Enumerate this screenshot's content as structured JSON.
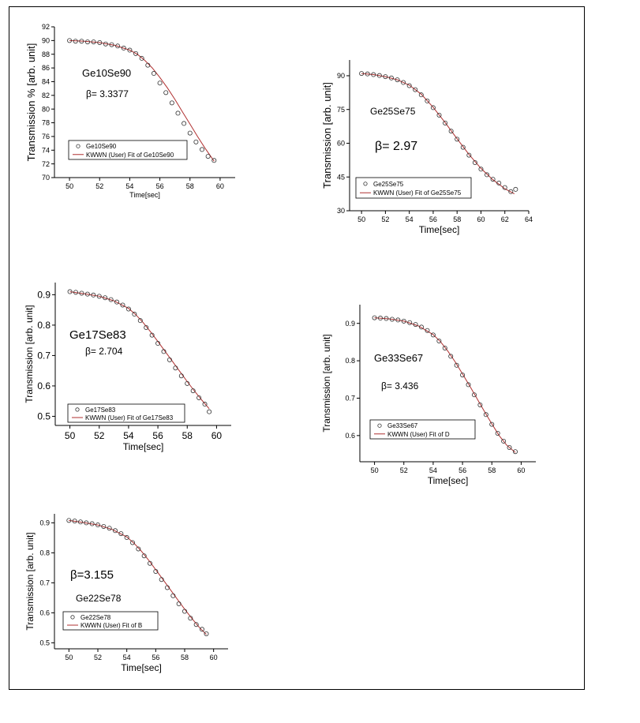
{
  "chart_data": [
    {
      "type": "scatter",
      "xlabel": "Time[sec]",
      "ylabel": "Transmission % [arb. unit]",
      "xlim": [
        49,
        61
      ],
      "ylim": [
        70,
        92
      ],
      "xticks": [
        50,
        52,
        54,
        56,
        58,
        60
      ],
      "yticks": [
        70,
        72,
        74,
        76,
        78,
        80,
        82,
        84,
        86,
        88,
        90,
        92
      ],
      "annotations": [
        "Ge10Se90",
        "β= 3.3377"
      ],
      "legend": [
        "Ge10Se90",
        "KWWN (User) Fit of Ge10Se90"
      ],
      "legend_position": "bottom-left",
      "colors": {
        "marker": "#333333",
        "fit": "#b03030"
      },
      "series": [
        {
          "name": "Ge10Se90",
          "kind": "points",
          "x": [
            50.0,
            50.4,
            50.8,
            51.2,
            51.6,
            52.0,
            52.4,
            52.8,
            53.2,
            53.6,
            54.0,
            54.4,
            54.8,
            55.2,
            55.6,
            56.0,
            56.4,
            56.8,
            57.2,
            57.6,
            58.0,
            58.4,
            58.8,
            59.2,
            59.6
          ],
          "y": [
            90.0,
            89.9,
            89.9,
            89.8,
            89.8,
            89.7,
            89.5,
            89.4,
            89.2,
            88.9,
            88.6,
            88.1,
            87.4,
            86.4,
            85.2,
            83.8,
            82.4,
            80.9,
            79.4,
            77.9,
            76.5,
            75.2,
            74.1,
            73.1,
            72.5
          ]
        },
        {
          "name": "KWWN (User) Fit of Ge10Se90",
          "kind": "line",
          "x": [
            50.0,
            51.0,
            52.0,
            53.0,
            54.0,
            54.5,
            55.0,
            55.5,
            56.0,
            56.5,
            57.0,
            57.5,
            58.0,
            58.5,
            59.0,
            59.6
          ],
          "y": [
            90.0,
            89.9,
            89.7,
            89.3,
            88.6,
            88.0,
            87.1,
            86.0,
            84.6,
            83.1,
            81.4,
            79.6,
            77.8,
            76.0,
            74.3,
            72.4
          ]
        }
      ]
    },
    {
      "type": "scatter",
      "xlabel": "Time[sec]",
      "ylabel": "Transmission [arb. unit]",
      "xlim": [
        49,
        64
      ],
      "ylim": [
        30,
        97
      ],
      "xticks": [
        50,
        52,
        54,
        56,
        58,
        60,
        62,
        64
      ],
      "yticks": [
        30,
        45,
        60,
        75,
        90
      ],
      "annotations": [
        "Ge25Se75",
        "β= 2.97"
      ],
      "legend": [
        "Ge25Se75",
        "KWWN (User) Fit of Ge25Se75"
      ],
      "legend_position": "bottom-left",
      "colors": {
        "marker": "#333333",
        "fit": "#b03030"
      },
      "series": [
        {
          "name": "Ge25Se75",
          "kind": "points",
          "x": [
            50.0,
            50.5,
            51.0,
            51.5,
            52.0,
            52.5,
            53.0,
            53.5,
            54.0,
            54.5,
            55.0,
            55.5,
            56.0,
            56.5,
            57.0,
            57.5,
            58.0,
            58.5,
            59.0,
            59.5,
            60.0,
            60.5,
            61.0,
            61.5,
            62.0,
            62.5,
            62.9
          ],
          "y": [
            91.0,
            90.8,
            90.5,
            90.1,
            89.6,
            89.0,
            88.2,
            87.0,
            85.6,
            83.8,
            81.5,
            78.8,
            75.8,
            72.5,
            69.0,
            65.4,
            61.8,
            58.2,
            54.7,
            51.4,
            48.5,
            46.0,
            44.0,
            42.3,
            40.3,
            38.5,
            39.5
          ]
        },
        {
          "name": "KWWN (User) Fit of Ge25Se75",
          "kind": "line",
          "x": [
            50.0,
            51.0,
            52.0,
            53.0,
            54.0,
            55.0,
            56.0,
            57.0,
            58.0,
            59.0,
            60.0,
            61.0,
            62.0,
            62.8
          ],
          "y": [
            91.0,
            90.5,
            89.6,
            88.2,
            85.8,
            81.8,
            76.0,
            69.2,
            62.0,
            55.0,
            48.8,
            43.8,
            39.8,
            37.5
          ]
        }
      ]
    },
    {
      "type": "scatter",
      "xlabel": "Time[sec]",
      "ylabel": "Transmission [arb. unit]",
      "xlim": [
        49,
        61
      ],
      "ylim": [
        0.47,
        0.94
      ],
      "xticks": [
        50,
        52,
        54,
        56,
        58,
        60
      ],
      "yticks": [
        0.5,
        0.6,
        0.7,
        0.8,
        0.9
      ],
      "annotations": [
        "Ge17Se83",
        "β= 2.704"
      ],
      "legend": [
        "Ge17Se83",
        "KWWN (User) Fit of Ge17Se83"
      ],
      "legend_position": "bottom-left",
      "colors": {
        "marker": "#333333",
        "fit": "#b03030"
      },
      "series": [
        {
          "name": "Ge17Se83",
          "kind": "points",
          "x": [
            50.0,
            50.4,
            50.8,
            51.2,
            51.6,
            52.0,
            52.4,
            52.8,
            53.2,
            53.6,
            54.0,
            54.4,
            54.8,
            55.2,
            55.6,
            56.0,
            56.4,
            56.8,
            57.2,
            57.6,
            58.0,
            58.4,
            58.8,
            59.2,
            59.5
          ],
          "y": [
            0.91,
            0.908,
            0.905,
            0.902,
            0.899,
            0.895,
            0.89,
            0.884,
            0.876,
            0.866,
            0.853,
            0.836,
            0.815,
            0.792,
            0.767,
            0.74,
            0.713,
            0.686,
            0.659,
            0.633,
            0.608,
            0.584,
            0.561,
            0.54,
            0.515
          ]
        },
        {
          "name": "KWWN (User) Fit of Ge17Se83",
          "kind": "line",
          "x": [
            50.0,
            51.0,
            52.0,
            53.0,
            54.0,
            54.5,
            55.0,
            55.5,
            56.0,
            56.5,
            57.0,
            57.5,
            58.0,
            58.5,
            59.0,
            59.5
          ],
          "y": [
            0.91,
            0.903,
            0.895,
            0.88,
            0.855,
            0.834,
            0.808,
            0.778,
            0.746,
            0.713,
            0.68,
            0.647,
            0.614,
            0.583,
            0.553,
            0.525
          ]
        }
      ]
    },
    {
      "type": "scatter",
      "xlabel": "Time[sec]",
      "ylabel": "Transmission [arb. unit]",
      "xlim": [
        49,
        61
      ],
      "ylim": [
        0.53,
        0.95
      ],
      "xticks": [
        50,
        52,
        54,
        56,
        58,
        60
      ],
      "yticks": [
        0.6,
        0.7,
        0.8,
        0.9
      ],
      "annotations": [
        "Ge33Se67",
        "β= 3.436"
      ],
      "legend": [
        "Ge33Se67",
        "KWWN (User) Fit of D"
      ],
      "legend_position": "bottom-left",
      "colors": {
        "marker": "#333333",
        "fit": "#b03030"
      },
      "series": [
        {
          "name": "Ge33Se67",
          "kind": "points",
          "x": [
            50.0,
            50.4,
            50.8,
            51.2,
            51.6,
            52.0,
            52.4,
            52.8,
            53.2,
            53.6,
            54.0,
            54.4,
            54.8,
            55.2,
            55.6,
            56.0,
            56.4,
            56.8,
            57.2,
            57.6,
            58.0,
            58.4,
            58.8,
            59.2,
            59.6
          ],
          "y": [
            0.915,
            0.914,
            0.913,
            0.911,
            0.909,
            0.906,
            0.902,
            0.897,
            0.89,
            0.881,
            0.869,
            0.853,
            0.834,
            0.812,
            0.788,
            0.762,
            0.736,
            0.709,
            0.682,
            0.656,
            0.63,
            0.606,
            0.585,
            0.568,
            0.557
          ]
        },
        {
          "name": "KWWN (User) Fit of D",
          "kind": "line",
          "x": [
            50.0,
            51.0,
            52.0,
            53.0,
            54.0,
            54.5,
            55.0,
            55.5,
            56.0,
            56.5,
            57.0,
            57.5,
            58.0,
            58.5,
            59.0,
            59.6
          ],
          "y": [
            0.915,
            0.912,
            0.906,
            0.893,
            0.87,
            0.851,
            0.826,
            0.797,
            0.765,
            0.732,
            0.698,
            0.664,
            0.631,
            0.6,
            0.575,
            0.555
          ]
        }
      ]
    },
    {
      "type": "scatter",
      "xlabel": "Time[sec]",
      "ylabel": "Transmission [arb. unit]",
      "xlim": [
        49,
        61
      ],
      "ylim": [
        0.48,
        0.93
      ],
      "xticks": [
        50,
        52,
        54,
        56,
        58,
        60
      ],
      "yticks": [
        0.5,
        0.6,
        0.7,
        0.8,
        0.9
      ],
      "annotations": [
        "β=3.155",
        "Ge22Se78"
      ],
      "legend": [
        "Ge22Se78",
        "KWWN (User) Fit of B"
      ],
      "legend_position": "bottom-left",
      "colors": {
        "marker": "#333333",
        "fit": "#b03030"
      },
      "series": [
        {
          "name": "Ge22Se78",
          "kind": "points",
          "x": [
            50.0,
            50.4,
            50.8,
            51.2,
            51.6,
            52.0,
            52.4,
            52.8,
            53.2,
            53.6,
            54.0,
            54.4,
            54.8,
            55.2,
            55.6,
            56.0,
            56.4,
            56.8,
            57.2,
            57.6,
            58.0,
            58.4,
            58.8,
            59.2,
            59.5
          ],
          "y": [
            0.908,
            0.906,
            0.903,
            0.9,
            0.897,
            0.893,
            0.888,
            0.882,
            0.874,
            0.864,
            0.851,
            0.834,
            0.813,
            0.79,
            0.765,
            0.738,
            0.711,
            0.684,
            0.657,
            0.63,
            0.605,
            0.582,
            0.561,
            0.545,
            0.53
          ]
        },
        {
          "name": "KWWN (User) Fit of B",
          "kind": "line",
          "x": [
            50.0,
            51.0,
            52.0,
            53.0,
            54.0,
            54.5,
            55.0,
            55.5,
            56.0,
            56.5,
            57.0,
            57.5,
            58.0,
            58.5,
            59.0,
            59.5
          ],
          "y": [
            0.908,
            0.901,
            0.893,
            0.878,
            0.853,
            0.832,
            0.806,
            0.776,
            0.744,
            0.711,
            0.678,
            0.645,
            0.612,
            0.581,
            0.552,
            0.528
          ]
        }
      ]
    }
  ]
}
